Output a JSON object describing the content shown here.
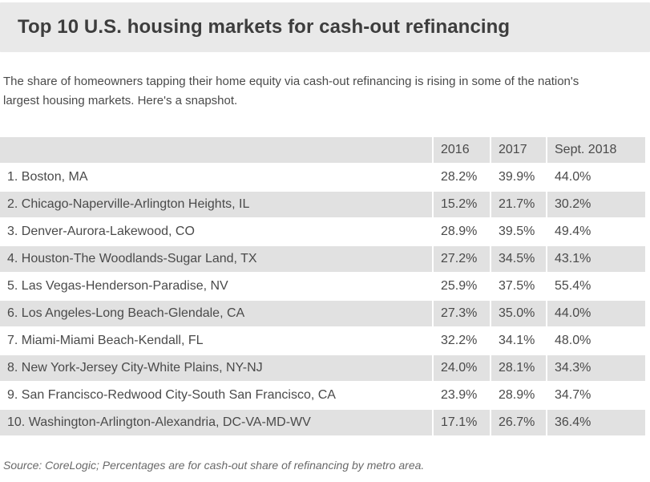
{
  "page": {
    "title": "Top 10 U.S. housing markets for cash-out refinancing",
    "subtitle": "The share of homeowners tapping their home equity via cash-out refinancing is rising in some of the nation's largest housing markets. Here's a snapshot.",
    "source_note": "Source: CoreLogic; Percentages are for cash-out share of refinancing by metro area."
  },
  "colors": {
    "title_bar_bg": "#e9e9e9",
    "row_stripe_bg": "#e1e1e1",
    "heading_text": "#3d3d3d",
    "body_text": "#4a4a4a",
    "source_text": "#696969",
    "page_bg": "#ffffff"
  },
  "chart_data": {
    "type": "table",
    "title": "Top 10 U.S. housing markets for cash-out refinancing",
    "columns": [
      "2016",
      "2017",
      "Sept. 2018"
    ],
    "corner_label": "",
    "rows": [
      {
        "rank": 1,
        "market": "Boston, MA",
        "label": "1. Boston, MA",
        "values": [
          "28.2%",
          "39.9%",
          "44.0%"
        ],
        "values_numeric": [
          28.2,
          39.9,
          44.0
        ]
      },
      {
        "rank": 2,
        "market": "Chicago-Naperville-Arlington Heights, IL",
        "label": "2. Chicago-Naperville-Arlington Heights, IL",
        "values": [
          "15.2%",
          "21.7%",
          "30.2%"
        ],
        "values_numeric": [
          15.2,
          21.7,
          30.2
        ]
      },
      {
        "rank": 3,
        "market": "Denver-Aurora-Lakewood, CO",
        "label": "3. Denver-Aurora-Lakewood, CO",
        "values": [
          "28.9%",
          "39.5%",
          "49.4%"
        ],
        "values_numeric": [
          28.9,
          39.5,
          49.4
        ]
      },
      {
        "rank": 4,
        "market": "Houston-The Woodlands-Sugar Land, TX",
        "label": "4. Houston-The Woodlands-Sugar Land, TX",
        "values": [
          "27.2%",
          "34.5%",
          "43.1%"
        ],
        "values_numeric": [
          27.2,
          34.5,
          43.1
        ]
      },
      {
        "rank": 5,
        "market": "Las Vegas-Henderson-Paradise, NV",
        "label": "5. Las Vegas-Henderson-Paradise, NV",
        "values": [
          "25.9%",
          "37.5%",
          "55.4%"
        ],
        "values_numeric": [
          25.9,
          37.5,
          55.4
        ]
      },
      {
        "rank": 6,
        "market": "Los Angeles-Long Beach-Glendale, CA",
        "label": "6. Los Angeles-Long Beach-Glendale, CA",
        "values": [
          "27.3%",
          "35.0%",
          "44.0%"
        ],
        "values_numeric": [
          27.3,
          35.0,
          44.0
        ]
      },
      {
        "rank": 7,
        "market": "Miami-Miami Beach-Kendall, FL",
        "label": "7. Miami-Miami Beach-Kendall, FL",
        "values": [
          "32.2%",
          "34.1%",
          "48.0%"
        ],
        "values_numeric": [
          32.2,
          34.1,
          48.0
        ]
      },
      {
        "rank": 8,
        "market": "New York-Jersey City-White Plains, NY-NJ",
        "label": "8. New York-Jersey City-White Plains, NY-NJ",
        "values": [
          "24.0%",
          "28.1%",
          "34.3%"
        ],
        "values_numeric": [
          24.0,
          28.1,
          34.3
        ]
      },
      {
        "rank": 9,
        "market": "San Francisco-Redwood City-South San Francisco, CA",
        "label": "9. San Francisco-Redwood City-South San Francisco, CA",
        "values": [
          "23.9%",
          "28.9%",
          "34.7%"
        ],
        "values_numeric": [
          23.9,
          28.9,
          34.7
        ]
      },
      {
        "rank": 10,
        "market": "Washington-Arlington-Alexandria, DC-VA-MD-WV",
        "label": "10. Washington-Arlington-Alexandria, DC-VA-MD-WV",
        "values": [
          "17.1%",
          "26.7%",
          "36.4%"
        ],
        "values_numeric": [
          17.1,
          26.7,
          36.4
        ]
      }
    ],
    "legend_position": "none",
    "grid": false,
    "notes": "Percentages are for cash-out share of refinancing by metro area",
    "source": "CoreLogic"
  }
}
